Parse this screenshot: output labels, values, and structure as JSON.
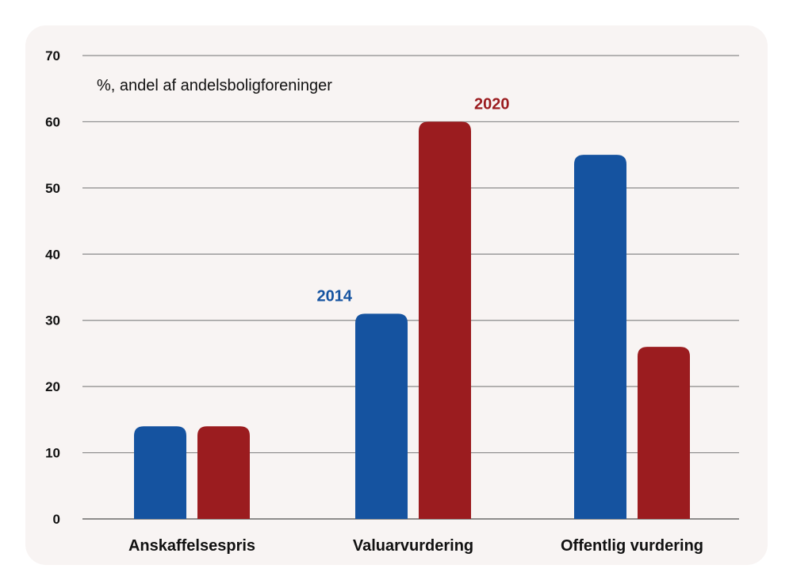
{
  "chart_data": {
    "type": "bar",
    "unit_label": "%, andel af andelsboligforeninger",
    "categories": [
      "Anskaffelsespris",
      "Valuarvurdering",
      "Offentlig vurdering"
    ],
    "series": [
      {
        "name": "2014",
        "color": "#1553a0",
        "values": [
          14,
          31,
          55
        ]
      },
      {
        "name": "2020",
        "color": "#9b1c1f",
        "values": [
          14,
          60,
          26
        ]
      }
    ],
    "yticks": [
      0,
      10,
      20,
      30,
      40,
      50,
      60,
      70
    ],
    "ylim": [
      0,
      70
    ],
    "grid": true,
    "legend": "inline labels above bars"
  }
}
